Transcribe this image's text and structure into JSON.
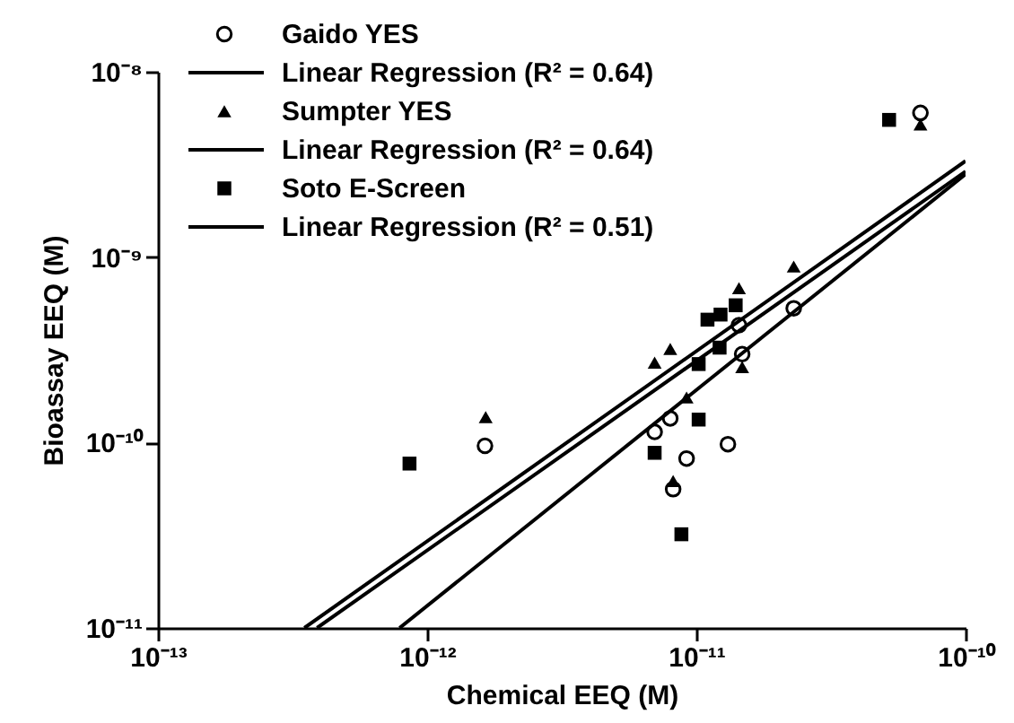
{
  "chart_data": {
    "type": "scatter",
    "xlabel": "Chemical EEQ (M)",
    "ylabel": "Bioassay EEQ (M)",
    "log": "xy",
    "grid": false,
    "legend": "top left",
    "xlim": [
      1e-13,
      1e-10
    ],
    "ylim": [
      1e-11,
      1e-08
    ],
    "xticks": [
      {
        "value": 1e-13,
        "label": "10⁻¹³"
      },
      {
        "value": 1e-12,
        "label": "10⁻¹²"
      },
      {
        "value": 1e-11,
        "label": "10⁻¹¹"
      },
      {
        "value": 1e-10,
        "label": "10⁻¹⁰"
      }
    ],
    "yticks": [
      {
        "value": 1e-11,
        "label": "10⁻¹¹"
      },
      {
        "value": 1e-10,
        "label": "10⁻¹⁰"
      },
      {
        "value": 1e-09,
        "label": "10⁻⁹"
      },
      {
        "value": 1e-08,
        "label": "10⁻⁸"
      }
    ],
    "series": [
      {
        "name": "Gaido YES",
        "marker": "circle",
        "color": "#000000",
        "x": [
          6.8e-11,
          2.3e-11,
          1.44e-11,
          1.48e-11,
          8e-12,
          7e-12,
          9.2e-12,
          1.31e-11,
          8.2e-12,
          1.64e-12
        ],
        "values": [
          6e-09,
          5.3e-10,
          4.3e-10,
          3e-10,
          1.35e-10,
          1.14e-10,
          8.2e-11,
          9.8e-11,
          5.6e-11,
          9.6e-11
        ]
      },
      {
        "name": "Linear Regression (R² = 0.64)",
        "type": "line",
        "color": "#000000",
        "x": [
          7.9e-13,
          1e-10
        ],
        "values": [
          1e-11,
          2.8e-09
        ]
      },
      {
        "name": "Sumpter YES",
        "marker": "triangle",
        "color": "#000000",
        "x": [
          6.8e-11,
          2.3e-11,
          1.44e-11,
          8e-12,
          7e-12,
          1.48e-11,
          9.2e-12,
          8.2e-12,
          1.65e-12
        ],
        "values": [
          5.2e-09,
          8.9e-10,
          6.8e-10,
          3.2e-10,
          2.7e-10,
          2.55e-10,
          1.75e-10,
          6.2e-11,
          1.37e-10
        ]
      },
      {
        "name": "Linear Regression (R² = 0.64)",
        "type": "line",
        "color": "#000000",
        "x": [
          3.5e-13,
          1e-10
        ],
        "values": [
          1e-11,
          3.3e-09
        ]
      },
      {
        "name": "Soto E-Screen",
        "marker": "square",
        "color": "#000000",
        "x": [
          5.2e-11,
          1.4e-11,
          1.1e-11,
          1.23e-11,
          1.22e-11,
          1.02e-11,
          1.02e-11,
          7e-12,
          8.8e-12,
          8.6e-13
        ],
        "values": [
          5.5e-09,
          5.5e-10,
          4.6e-10,
          4.9e-10,
          3.25e-10,
          2.65e-10,
          1.33e-10,
          8.8e-11,
          3.2e-11,
          7.7e-11
        ]
      },
      {
        "name": "Linear Regression (R² = 0.51)",
        "type": "line",
        "color": "#000000",
        "x": [
          3.9e-13,
          1e-10
        ],
        "values": [
          1e-11,
          2.9e-09
        ]
      }
    ]
  }
}
